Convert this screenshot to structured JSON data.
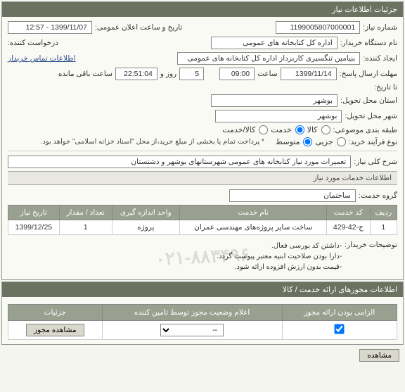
{
  "panels": {
    "info_title": "جزئیات اطلاعات نیاز",
    "services_title": "اطلاعات خدمات مورد نیاز",
    "auth_title": "اطلاعات مجوزهای ارائه خدمت / کالا"
  },
  "labels": {
    "need_no": "شماره نیاز:",
    "announce_dt": "تاریخ و ساعت اعلان عمومی:",
    "buyer_org": "نام دستگاه خریدار:",
    "requester": "درخواست کننده:",
    "creator": "ایجاد کننده:",
    "deadline": "مهلت ارسال پاسخ:",
    "hour": "ساعت",
    "day": "روز و",
    "remain": "ساعت باقی مانده",
    "until": "تا تاریخ:",
    "delivery_prov": "استان محل تحویل:",
    "delivery_city": "شهر محل تحویل:",
    "category": "طبقه بندی موضوعی:",
    "goods": "کالا",
    "service": "خدمت",
    "goods_service": "کالا/خدمت",
    "purchase_type": "نوع فرآیند خرید:",
    "partial": "جزیی",
    "medium": "متوسط",
    "payment_note": "* پرداخت تمام یا بخشی از مبلغ خرید،از محل \"اسناد خزانه اسلامی\" خواهد بود.",
    "general_desc": "شرح کلی نیاز:",
    "contact_link": "اطلاعات تماس خریدار",
    "service_group": "گروه خدمت:",
    "buyer_notes_lbl": "توضیحات خریدار:"
  },
  "values": {
    "need_no": "1199005807000001",
    "announce_dt": "1399/11/07 - 12:57",
    "buyer_org": "اداره کل کتابخانه های عمومی",
    "creator": "بنیامین تنگسیری کاربرداز اداره کل کتابخانه های عمومی",
    "deadline_date": "1399/11/14",
    "deadline_time": "09:00",
    "deadline_days": "5",
    "deadline_remain": "22:51:04",
    "delivery_prov": "بوشهر",
    "delivery_city": "بوشهر",
    "general_desc": "تعمیرات مورد نیاز کتابخانه های عمومی شهرستانهای بوشهر و دشتستان",
    "service_group": "ساختمان"
  },
  "service_table": {
    "headers": [
      "ردیف",
      "کد خدمت",
      "نام خدمت",
      "واحد اندازه گیری",
      "تعداد / مقدار",
      "تاریخ نیاز"
    ],
    "rows": [
      [
        "1",
        "ج-42-429",
        "ساخت سایر پروژه‌های مهندسی عمران",
        "پروژه",
        "1",
        "1399/12/25"
      ]
    ]
  },
  "buyer_notes": [
    "-داشتن کد بورسی فعال.",
    "-دارا بودن صلاحیت ابنیه معتبر پیوست گردد.",
    "-قیمت بدون ارزش افزوده ارائه شود."
  ],
  "auth_table": {
    "headers": [
      "الزامی بودن ارائه مجوز",
      "اعلام وضعیت مجوز توسط تامین کننده",
      "جزئیات"
    ],
    "select_placeholder": "--",
    "view_btn": "مشاهده مجوز"
  },
  "bottom": {
    "view": "مشاهده"
  },
  "colors": {
    "header_bg": "#6b7260",
    "th_bg": "#9aa090"
  }
}
